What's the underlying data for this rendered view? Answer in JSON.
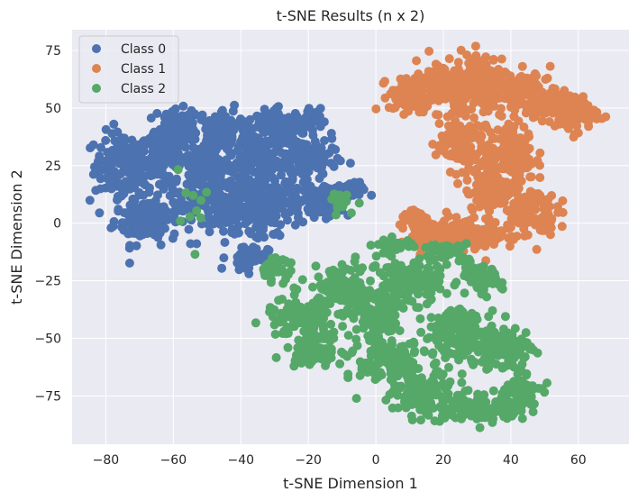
{
  "chart_data": {
    "type": "scatter",
    "title": "t-SNE Results (n x 2)",
    "xlabel": "t-SNE Dimension 1",
    "ylabel": "t-SNE Dimension 2",
    "xlim": [
      -90,
      75
    ],
    "ylim": [
      -96,
      84
    ],
    "xticks": [
      -80,
      -60,
      -40,
      -20,
      0,
      20,
      40,
      60
    ],
    "yticks": [
      -75,
      -50,
      -25,
      0,
      25,
      50,
      75
    ],
    "grid": true,
    "background": "#eaeaf2",
    "legend_position": "top-left",
    "series": [
      {
        "name": "Class 0",
        "color": "#4c72b0",
        "clusters": [
          {
            "cx": -75,
            "cy": 25,
            "rx": 7,
            "ry": 12,
            "n": 140
          },
          {
            "cx": -68,
            "cy": 3,
            "rx": 8,
            "ry": 10,
            "n": 140
          },
          {
            "cx": -63,
            "cy": 28,
            "rx": 7,
            "ry": 10,
            "n": 120
          },
          {
            "cx": -58,
            "cy": 42,
            "rx": 5,
            "ry": 6,
            "n": 80
          },
          {
            "cx": -50,
            "cy": 20,
            "rx": 9,
            "ry": 12,
            "n": 160
          },
          {
            "cx": -45,
            "cy": 40,
            "rx": 8,
            "ry": 8,
            "n": 120
          },
          {
            "cx": -42,
            "cy": 5,
            "rx": 10,
            "ry": 10,
            "n": 160
          },
          {
            "cx": -35,
            "cy": 25,
            "rx": 8,
            "ry": 10,
            "n": 140
          },
          {
            "cx": -28,
            "cy": 42,
            "rx": 6,
            "ry": 6,
            "n": 90
          },
          {
            "cx": -30,
            "cy": 8,
            "rx": 7,
            "ry": 9,
            "n": 110
          },
          {
            "cx": -20,
            "cy": 28,
            "rx": 7,
            "ry": 8,
            "n": 110
          },
          {
            "cx": -15,
            "cy": 10,
            "rx": 6,
            "ry": 6,
            "n": 90
          },
          {
            "cx": -38,
            "cy": -15,
            "rx": 5,
            "ry": 5,
            "n": 50
          },
          {
            "cx": -8,
            "cy": 14,
            "rx": 4,
            "ry": 3,
            "n": 30
          },
          {
            "cx": -20,
            "cy": 45,
            "rx": 3,
            "ry": 4,
            "n": 30
          }
        ]
      },
      {
        "name": "Class 1",
        "color": "#dd8452",
        "clusters": [
          {
            "cx": 10,
            "cy": 55,
            "rx": 5,
            "ry": 6,
            "n": 80
          },
          {
            "cx": 20,
            "cy": 60,
            "rx": 7,
            "ry": 9,
            "n": 140
          },
          {
            "cx": 32,
            "cy": 62,
            "rx": 8,
            "ry": 10,
            "n": 160
          },
          {
            "cx": 45,
            "cy": 55,
            "rx": 7,
            "ry": 8,
            "n": 120
          },
          {
            "cx": 58,
            "cy": 48,
            "rx": 6,
            "ry": 7,
            "n": 100
          },
          {
            "cx": 25,
            "cy": 35,
            "rx": 6,
            "ry": 10,
            "n": 120
          },
          {
            "cx": 40,
            "cy": 30,
            "rx": 6,
            "ry": 10,
            "n": 120
          },
          {
            "cx": 35,
            "cy": 15,
            "rx": 7,
            "ry": 8,
            "n": 110
          },
          {
            "cx": 45,
            "cy": 5,
            "rx": 7,
            "ry": 9,
            "n": 110
          },
          {
            "cx": 30,
            "cy": -5,
            "rx": 7,
            "ry": 6,
            "n": 100
          },
          {
            "cx": 18,
            "cy": -5,
            "rx": 6,
            "ry": 6,
            "n": 80
          },
          {
            "cx": 12,
            "cy": 1,
            "rx": 4,
            "ry": 3,
            "n": 40
          }
        ]
      },
      {
        "name": "Class 2",
        "color": "#55a868",
        "clusters": [
          {
            "cx": -22,
            "cy": -42,
            "rx": 9,
            "ry": 7,
            "n": 130
          },
          {
            "cx": -18,
            "cy": -55,
            "rx": 7,
            "ry": 5,
            "n": 90
          },
          {
            "cx": -10,
            "cy": -28,
            "rx": 8,
            "ry": 8,
            "n": 110
          },
          {
            "cx": 0,
            "cy": -40,
            "rx": 6,
            "ry": 10,
            "n": 110
          },
          {
            "cx": 5,
            "cy": -60,
            "rx": 8,
            "ry": 10,
            "n": 130
          },
          {
            "cx": 10,
            "cy": -25,
            "rx": 8,
            "ry": 8,
            "n": 120
          },
          {
            "cx": 15,
            "cy": -75,
            "rx": 8,
            "ry": 8,
            "n": 130
          },
          {
            "cx": 25,
            "cy": -48,
            "rx": 9,
            "ry": 9,
            "n": 140
          },
          {
            "cx": 30,
            "cy": -80,
            "rx": 7,
            "ry": 5,
            "n": 90
          },
          {
            "cx": 38,
            "cy": -55,
            "rx": 7,
            "ry": 8,
            "n": 110
          },
          {
            "cx": 42,
            "cy": -75,
            "rx": 6,
            "ry": 7,
            "n": 90
          },
          {
            "cx": 30,
            "cy": -25,
            "rx": 6,
            "ry": 5,
            "n": 70
          },
          {
            "cx": -30,
            "cy": -20,
            "rx": 4,
            "ry": 4,
            "n": 35
          },
          {
            "cx": 5,
            "cy": -10,
            "rx": 5,
            "ry": 3,
            "n": 40
          },
          {
            "cx": 22,
            "cy": -12,
            "rx": 5,
            "ry": 3,
            "n": 35
          },
          {
            "cx": -10,
            "cy": 8,
            "rx": 4,
            "ry": 4,
            "n": 15
          },
          {
            "cx": -55,
            "cy": 10,
            "rx": 6,
            "ry": 15,
            "n": 10
          }
        ]
      }
    ]
  }
}
